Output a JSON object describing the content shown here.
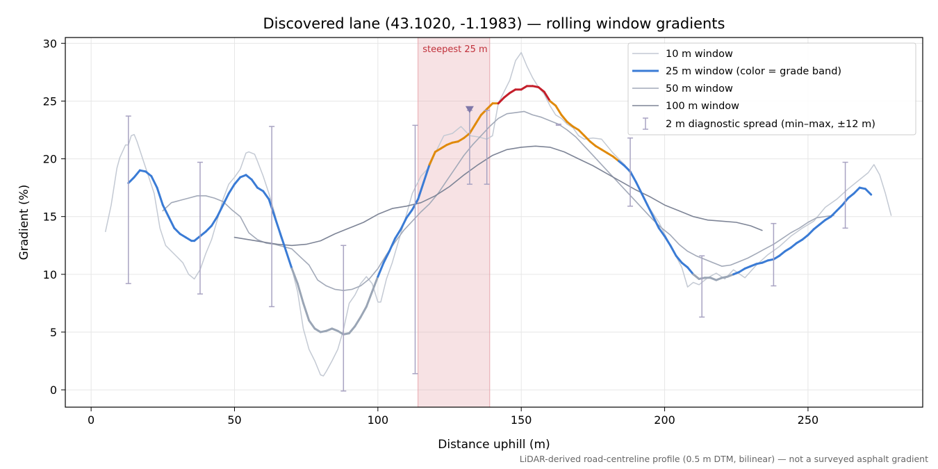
{
  "chart_data": {
    "type": "line",
    "title": "Discovered lane (43.1020, -1.1983) — rolling window gradients",
    "xlabel": "Distance uphill (m)",
    "ylabel": "Gradient (%)",
    "xlim": [
      -9,
      290
    ],
    "ylim": [
      -1.5,
      30.5
    ],
    "xticks": [
      0,
      50,
      100,
      150,
      200,
      250
    ],
    "yticks": [
      0,
      5,
      10,
      15,
      20,
      25,
      30
    ],
    "grid": true,
    "legend_position": "top-right",
    "footnote": "LiDAR-derived road-centreline profile (0.5 m DTM, bilinear) — not a surveyed asphalt gradient",
    "highlight_band": {
      "x": [
        114,
        139
      ],
      "label": "steepest 25 m",
      "color": "#e8a6ad"
    },
    "peak_marker": {
      "x": 132,
      "y": 24.2,
      "color": "#7f77a8"
    },
    "series": [
      {
        "name": "10 m window",
        "color": "#c3c9d3",
        "style": "thin",
        "x": [
          5,
          7,
          9,
          10,
          12,
          13,
          14,
          15,
          16,
          18,
          20,
          22,
          24,
          26,
          28,
          30,
          32,
          34,
          36,
          37,
          38,
          40,
          42,
          44,
          46,
          48,
          50,
          52,
          54,
          55,
          57,
          58,
          60,
          62,
          64,
          66,
          68,
          70,
          72,
          74,
          76,
          78,
          80,
          81,
          82,
          84,
          86,
          88,
          90,
          92,
          94,
          96,
          98,
          100,
          101,
          103,
          105,
          107,
          110,
          112,
          115,
          118,
          120,
          123,
          126,
          129,
          132,
          135,
          138,
          140,
          142,
          144,
          146,
          148,
          150,
          152,
          154,
          156,
          158,
          160,
          162,
          164,
          166,
          168,
          170,
          172,
          175,
          178,
          182,
          186,
          190,
          194,
          198,
          202,
          206,
          208,
          210,
          212,
          215,
          218,
          221,
          224,
          228,
          232,
          236,
          240,
          244,
          248,
          252,
          256,
          260,
          264,
          268,
          271,
          273,
          275,
          277,
          279
        ],
        "y": [
          13.7,
          16.0,
          19.2,
          20.1,
          21.2,
          21.2,
          22.0,
          22.1,
          21.5,
          20.0,
          18.5,
          17.0,
          14.0,
          12.5,
          12.0,
          11.5,
          11.0,
          10.0,
          9.6,
          10.0,
          10.4,
          11.8,
          13.0,
          14.7,
          16.5,
          17.8,
          18.4,
          19.1,
          20.5,
          20.6,
          20.4,
          19.8,
          18.5,
          17.0,
          15.3,
          13.3,
          12.0,
          10.5,
          8.5,
          5.3,
          3.5,
          2.5,
          1.3,
          1.2,
          1.6,
          2.5,
          3.5,
          5.2,
          7.5,
          8.2,
          9.2,
          9.8,
          9.2,
          7.6,
          7.6,
          9.6,
          11.0,
          12.7,
          15.2,
          17.0,
          18.5,
          19.3,
          20.5,
          22.0,
          22.2,
          22.8,
          22.0,
          21.9,
          21.7,
          22.0,
          24.8,
          25.8,
          26.8,
          28.5,
          29.2,
          28.0,
          27.0,
          26.2,
          25.6,
          24.6,
          23.8,
          23.5,
          23.0,
          22.7,
          22.0,
          21.7,
          21.8,
          21.7,
          20.5,
          19.5,
          18.0,
          16.0,
          14.5,
          12.5,
          10.6,
          8.9,
          9.3,
          9.1,
          9.7,
          10.1,
          9.6,
          10.4,
          9.7,
          10.8,
          11.7,
          12.4,
          13.3,
          14.0,
          14.6,
          15.8,
          16.5,
          17.4,
          18.2,
          18.8,
          19.5,
          18.6,
          17.0,
          15.1
        ]
      },
      {
        "name": "25 m window (color = grade band)",
        "color": "#3a7bd5",
        "style": "thick",
        "band_colors": [
          {
            "min": 0,
            "max": 10,
            "color": "#9aa5b5"
          },
          {
            "min": 10,
            "max": 20,
            "color": "#3a7bd5"
          },
          {
            "min": 20,
            "max": 25,
            "color": "#e08a0b"
          },
          {
            "min": 25,
            "max": 100,
            "color": "#c41e2a"
          }
        ],
        "x": [
          13,
          15,
          17,
          19,
          21,
          23,
          25,
          27,
          29,
          31,
          33,
          35,
          36,
          38,
          40,
          42,
          44,
          46,
          48,
          50,
          52,
          54,
          56,
          58,
          60,
          62,
          64,
          66,
          68,
          70,
          72,
          74,
          76,
          78,
          80,
          82,
          84,
          86,
          88,
          90,
          92,
          94,
          96,
          98,
          100,
          102,
          104,
          106,
          108,
          110,
          112,
          114,
          116,
          118,
          120,
          122,
          124,
          126,
          128,
          130,
          132,
          134,
          136,
          138,
          140,
          142,
          144,
          146,
          148,
          150,
          152,
          154,
          156,
          158,
          160,
          162,
          164,
          166,
          168,
          170,
          172,
          174,
          176,
          178,
          180,
          182,
          184,
          186,
          188,
          190,
          192,
          194,
          196,
          198,
          200,
          202,
          204,
          206,
          208,
          210,
          212,
          214,
          216,
          218,
          220,
          222,
          224,
          226,
          228,
          230,
          232,
          234,
          236,
          238,
          240,
          242,
          244,
          246,
          248,
          250,
          252,
          254,
          256,
          258,
          260,
          262,
          264,
          266,
          268,
          270,
          272
        ],
        "y": [
          17.9,
          18.4,
          19.0,
          18.9,
          18.5,
          17.5,
          16.0,
          15.0,
          14.0,
          13.5,
          13.2,
          12.9,
          12.9,
          13.3,
          13.7,
          14.2,
          15.0,
          16.0,
          17.0,
          17.8,
          18.4,
          18.6,
          18.2,
          17.5,
          17.2,
          16.5,
          15.0,
          13.5,
          12.0,
          10.5,
          9.2,
          7.5,
          6.0,
          5.3,
          5.0,
          5.1,
          5.3,
          5.1,
          4.8,
          4.9,
          5.5,
          6.3,
          7.2,
          8.5,
          9.8,
          11.0,
          12.0,
          13.1,
          13.9,
          14.9,
          15.6,
          16.5,
          18.0,
          19.5,
          20.6,
          20.9,
          21.2,
          21.4,
          21.5,
          21.8,
          22.2,
          23.0,
          23.8,
          24.3,
          24.8,
          24.8,
          25.3,
          25.7,
          26.0,
          26.0,
          26.3,
          26.3,
          26.2,
          25.8,
          25.0,
          24.6,
          23.8,
          23.2,
          22.8,
          22.5,
          22.0,
          21.5,
          21.1,
          20.8,
          20.5,
          20.2,
          19.8,
          19.4,
          18.9,
          18.0,
          17.0,
          16.0,
          15.0,
          14.0,
          13.3,
          12.5,
          11.6,
          11.0,
          10.6,
          10.0,
          9.6,
          9.7,
          9.7,
          9.5,
          9.7,
          9.8,
          10.0,
          10.2,
          10.5,
          10.7,
          10.9,
          11.0,
          11.2,
          11.3,
          11.6,
          12.0,
          12.3,
          12.7,
          13.0,
          13.4,
          13.9,
          14.3,
          14.7,
          15.0,
          15.5,
          16.0,
          16.6,
          17.0,
          17.5,
          17.4,
          16.9
        ]
      },
      {
        "name": "50 m window",
        "color": "#a2a9b8",
        "style": "medium",
        "x": [
          25,
          28,
          31,
          34,
          37,
          40,
          43,
          46,
          49,
          52,
          55,
          58,
          61,
          64,
          67,
          70,
          73,
          76,
          79,
          82,
          85,
          88,
          91,
          94,
          97,
          100,
          103,
          106,
          109,
          112,
          115,
          118,
          121,
          124,
          127,
          130,
          133,
          136,
          139,
          142,
          145,
          148,
          151,
          154,
          157,
          160,
          163,
          166,
          169,
          172,
          175,
          178,
          181,
          184,
          187,
          190,
          193,
          196,
          199,
          202,
          205,
          208,
          211,
          214,
          217,
          220,
          223,
          226,
          229,
          232,
          235,
          238,
          241,
          244,
          247,
          250,
          253,
          256,
          259
        ],
        "y": [
          15.5,
          16.2,
          16.4,
          16.6,
          16.8,
          16.8,
          16.6,
          16.3,
          15.6,
          15.0,
          13.6,
          13.0,
          12.7,
          12.6,
          12.4,
          12.2,
          11.5,
          10.8,
          9.5,
          9.0,
          8.7,
          8.6,
          8.7,
          9.0,
          9.6,
          10.5,
          11.7,
          12.8,
          13.8,
          14.6,
          15.4,
          16.1,
          17.0,
          18.1,
          19.2,
          20.3,
          21.2,
          22.0,
          22.8,
          23.5,
          23.9,
          24.0,
          24.1,
          23.8,
          23.6,
          23.3,
          23.0,
          22.5,
          21.9,
          21.1,
          20.3,
          19.5,
          18.7,
          17.9,
          17.1,
          16.3,
          15.5,
          14.7,
          14.0,
          13.4,
          12.6,
          12.0,
          11.6,
          11.3,
          11.0,
          10.7,
          10.8,
          11.1,
          11.4,
          11.8,
          12.2,
          12.6,
          13.1,
          13.6,
          14.0,
          14.5,
          14.9,
          15.0,
          15.1
        ]
      },
      {
        "name": "100 m window",
        "color": "#7d8496",
        "style": "medium",
        "x": [
          50,
          55,
          60,
          65,
          70,
          75,
          80,
          85,
          90,
          95,
          100,
          105,
          110,
          115,
          120,
          125,
          130,
          135,
          140,
          145,
          150,
          155,
          160,
          165,
          170,
          175,
          180,
          185,
          190,
          195,
          200,
          205,
          210,
          215,
          220,
          225,
          230,
          234
        ],
        "y": [
          13.2,
          13.0,
          12.8,
          12.6,
          12.5,
          12.6,
          12.9,
          13.5,
          14.0,
          14.5,
          15.2,
          15.7,
          15.9,
          16.2,
          16.8,
          17.6,
          18.6,
          19.5,
          20.3,
          20.8,
          21.0,
          21.1,
          21.0,
          20.6,
          20.0,
          19.4,
          18.7,
          18.0,
          17.3,
          16.7,
          16.0,
          15.5,
          15.0,
          14.7,
          14.6,
          14.5,
          14.2,
          13.8
        ]
      }
    ],
    "diagnostic_spread": {
      "name": "2 m diagnostic spread (min–max, ±12 m)",
      "color": "#a8a3c2",
      "points": [
        {
          "x": 13,
          "low": 9.2,
          "high": 23.7
        },
        {
          "x": 38,
          "low": 8.3,
          "high": 19.7
        },
        {
          "x": 63,
          "low": 7.2,
          "high": 22.8
        },
        {
          "x": 88,
          "low": -0.1,
          "high": 12.5
        },
        {
          "x": 113,
          "low": 1.4,
          "high": 22.9
        },
        {
          "x": 132,
          "low": 17.8,
          "high": 24.2
        },
        {
          "x": 138,
          "low": 17.8,
          "high": 24.2
        },
        {
          "x": 163,
          "low": 22.9,
          "high": 23.0
        },
        {
          "x": 188,
          "low": 15.9,
          "high": 21.8
        },
        {
          "x": 213,
          "low": 6.3,
          "high": 11.6
        },
        {
          "x": 238,
          "low": 9.0,
          "high": 14.4
        },
        {
          "x": 263,
          "low": 14.0,
          "high": 19.7
        }
      ]
    }
  }
}
